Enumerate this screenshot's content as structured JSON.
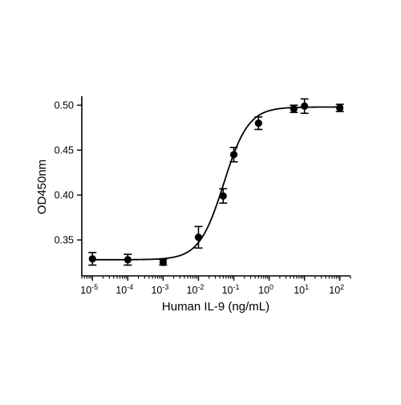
{
  "chart_data": {
    "type": "scatter",
    "title": "",
    "xlabel": "Human IL-9 (ng/mL)",
    "ylabel": "OD450nm",
    "x_scale": "log",
    "xlim": [
      5e-06,
      200
    ],
    "ylim": [
      0.31,
      0.51
    ],
    "x_ticks": [
      {
        "value": 1e-05,
        "base": "10",
        "exp": "-5"
      },
      {
        "value": 0.0001,
        "base": "10",
        "exp": "-4"
      },
      {
        "value": 0.001,
        "base": "10",
        "exp": "-3"
      },
      {
        "value": 0.01,
        "base": "10",
        "exp": "-2"
      },
      {
        "value": 0.1,
        "base": "10",
        "exp": "-1"
      },
      {
        "value": 1,
        "base": "10",
        "exp": "0"
      },
      {
        "value": 10,
        "base": "10",
        "exp": "1"
      },
      {
        "value": 100,
        "base": "10",
        "exp": "2"
      }
    ],
    "y_ticks": [
      {
        "value": 0.35,
        "label": "0.35"
      },
      {
        "value": 0.4,
        "label": "0.40"
      },
      {
        "value": 0.45,
        "label": "0.45"
      },
      {
        "value": 0.5,
        "label": "0.50"
      }
    ],
    "grid": false,
    "series": [
      {
        "points": [
          {
            "x": 1e-05,
            "y": 0.329,
            "err": 0.007
          },
          {
            "x": 0.0001,
            "y": 0.328,
            "err": 0.006
          },
          {
            "x": 0.001,
            "y": 0.325,
            "err": 0.003
          },
          {
            "x": 0.01,
            "y": 0.353,
            "err": 0.012
          },
          {
            "x": 0.05,
            "y": 0.399,
            "err": 0.008
          },
          {
            "x": 0.1,
            "y": 0.445,
            "err": 0.008
          },
          {
            "x": 0.5,
            "y": 0.48,
            "err": 0.007
          },
          {
            "x": 5,
            "y": 0.496,
            "err": 0.004
          },
          {
            "x": 10,
            "y": 0.499,
            "err": 0.008
          },
          {
            "x": 100,
            "y": 0.497,
            "err": 0.004
          }
        ],
        "fit": {
          "model": "4PL",
          "bottom": 0.328,
          "top": 0.498,
          "ec50": 0.052,
          "hill": 1.25
        }
      }
    ]
  }
}
